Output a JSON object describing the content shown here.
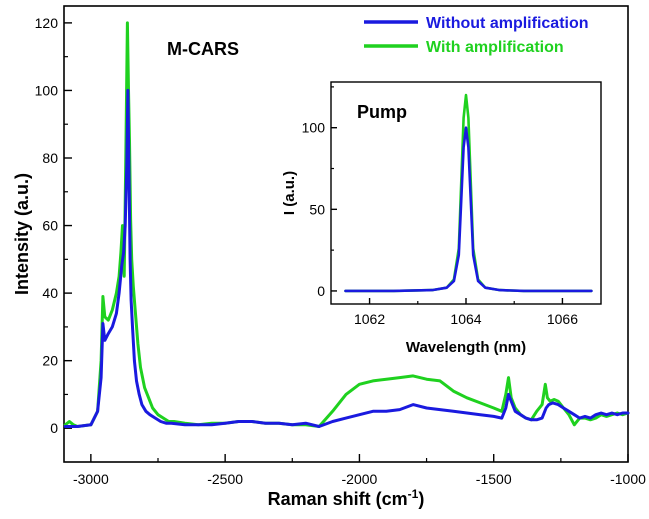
{
  "colors": {
    "without": "#1a1adf",
    "with": "#1fd11f",
    "axis": "#000000"
  },
  "chart_data": [
    {
      "id": "main",
      "type": "line",
      "title": "",
      "annotation": "M-CARS",
      "xlabel": "Raman shift (cm",
      "xlabel_sup": "-1",
      "xlabel_tail": ")",
      "ylabel": "Intensity (a.u.)",
      "xlim": [
        -3100,
        -1000
      ],
      "ylim": [
        -10,
        125
      ],
      "x_ticks": [
        -3000,
        -2500,
        -2000,
        -1500,
        -1000
      ],
      "y_ticks": [
        0,
        20,
        40,
        60,
        80,
        100,
        120
      ],
      "legend_position": "top-right",
      "series": [
        {
          "name": "Without amplification",
          "color_key": "without",
          "x": [
            -3095,
            -3050,
            -3000,
            -2975,
            -2962,
            -2955,
            -2948,
            -2935,
            -2920,
            -2905,
            -2895,
            -2885,
            -2878,
            -2872,
            -2866,
            -2862,
            -2858,
            -2854,
            -2850,
            -2845,
            -2838,
            -2830,
            -2820,
            -2810,
            -2795,
            -2780,
            -2760,
            -2740,
            -2720,
            -2700,
            -2650,
            -2600,
            -2550,
            -2500,
            -2450,
            -2400,
            -2350,
            -2300,
            -2250,
            -2200,
            -2150,
            -2100,
            -2050,
            -2000,
            -1950,
            -1900,
            -1850,
            -1800,
            -1750,
            -1700,
            -1650,
            -1600,
            -1550,
            -1500,
            -1470,
            -1455,
            -1445,
            -1435,
            -1420,
            -1400,
            -1380,
            -1360,
            -1340,
            -1320,
            -1305,
            -1295,
            -1280,
            -1260,
            -1240,
            -1220,
            -1200,
            -1180,
            -1160,
            -1140,
            -1120,
            -1100,
            -1080,
            -1060,
            -1040,
            -1020,
            -1000
          ],
          "y": [
            0.5,
            0.5,
            1,
            5,
            15,
            31,
            26,
            28,
            30,
            34,
            40,
            48,
            52,
            60,
            78,
            100,
            75,
            50,
            38,
            30,
            20,
            14,
            10,
            7,
            5,
            4,
            3,
            2,
            1.5,
            1.5,
            1,
            1,
            1,
            1.5,
            2,
            2,
            1.5,
            1.5,
            1,
            1.5,
            0.5,
            2,
            3,
            4,
            5,
            5,
            5.5,
            7,
            6,
            5.5,
            5,
            4.5,
            4,
            3.5,
            3,
            6,
            10,
            8,
            5,
            4,
            3,
            2.5,
            2.5,
            3,
            6,
            7,
            7.5,
            7,
            6,
            5,
            4,
            3,
            3.5,
            3,
            4,
            4.5,
            4,
            4.5,
            4,
            4.5,
            4.5
          ]
        },
        {
          "name": "With amplification",
          "color_key": "with",
          "x": [
            -3095,
            -3080,
            -3065,
            -3050,
            -3000,
            -2975,
            -2962,
            -2955,
            -2948,
            -2935,
            -2920,
            -2905,
            -2895,
            -2888,
            -2882,
            -2876,
            -2870,
            -2864,
            -2860,
            -2856,
            -2852,
            -2848,
            -2842,
            -2835,
            -2825,
            -2815,
            -2800,
            -2785,
            -2770,
            -2750,
            -2730,
            -2710,
            -2690,
            -2650,
            -2600,
            -2550,
            -2500,
            -2450,
            -2400,
            -2350,
            -2300,
            -2250,
            -2200,
            -2150,
            -2100,
            -2050,
            -2000,
            -1950,
            -1900,
            -1850,
            -1800,
            -1750,
            -1700,
            -1650,
            -1600,
            -1550,
            -1500,
            -1470,
            -1455,
            -1445,
            -1435,
            -1420,
            -1400,
            -1380,
            -1360,
            -1340,
            -1320,
            -1308,
            -1300,
            -1290,
            -1275,
            -1260,
            -1240,
            -1220,
            -1200,
            -1180,
            -1160,
            -1140,
            -1120,
            -1100,
            -1080,
            -1060,
            -1040,
            -1020,
            -1000
          ],
          "y": [
            1,
            2,
            1,
            0.5,
            1,
            5,
            20,
            39,
            33,
            32,
            35,
            40,
            45,
            52,
            60,
            45,
            80,
            120,
            100,
            85,
            62,
            50,
            42,
            35,
            25,
            18,
            12,
            9,
            6,
            4,
            3,
            2,
            2,
            1.5,
            1,
            1.5,
            1.5,
            2,
            2,
            1.5,
            1.5,
            1,
            1,
            0.5,
            5,
            10,
            13,
            14,
            14.5,
            15,
            15.5,
            14.5,
            14,
            11,
            9,
            7.5,
            6,
            5,
            10,
            15,
            9,
            6,
            4,
            3,
            2.5,
            5,
            7,
            13,
            9,
            8,
            8.5,
            8,
            6,
            4,
            1,
            3,
            3,
            2.5,
            3,
            4,
            3.5,
            4,
            4.5,
            4,
            4.5
          ]
        }
      ]
    },
    {
      "id": "inset",
      "type": "line",
      "title": "",
      "annotation": "Pump",
      "xlabel": "Wavelength (nm)",
      "ylabel": "I (a.u.)",
      "xlim": [
        1061.2,
        1066.8
      ],
      "ylim": [
        -8,
        128
      ],
      "x_ticks": [
        1062,
        1064,
        1066
      ],
      "y_ticks": [
        0,
        50,
        100
      ],
      "series": [
        {
          "name": "Without amplification",
          "color_key": "without",
          "x": [
            1061.5,
            1062.5,
            1063.3,
            1063.6,
            1063.75,
            1063.85,
            1063.9,
            1063.95,
            1064.0,
            1064.05,
            1064.1,
            1064.15,
            1064.25,
            1064.4,
            1064.7,
            1065.2,
            1066.6
          ],
          "y": [
            0,
            0,
            0.5,
            2,
            6,
            22,
            55,
            88,
            100,
            88,
            55,
            22,
            6,
            2,
            0.5,
            0,
            0
          ]
        },
        {
          "name": "With amplification",
          "color_key": "with",
          "x": [
            1061.5,
            1062.5,
            1063.3,
            1063.6,
            1063.75,
            1063.85,
            1063.9,
            1063.95,
            1064.0,
            1064.05,
            1064.1,
            1064.15,
            1064.25,
            1064.4,
            1064.7,
            1065.2,
            1066.6
          ],
          "y": [
            0,
            0,
            0.5,
            2,
            7,
            26,
            66,
            106,
            120,
            106,
            66,
            26,
            7,
            2,
            0.5,
            0,
            0
          ]
        }
      ]
    }
  ]
}
